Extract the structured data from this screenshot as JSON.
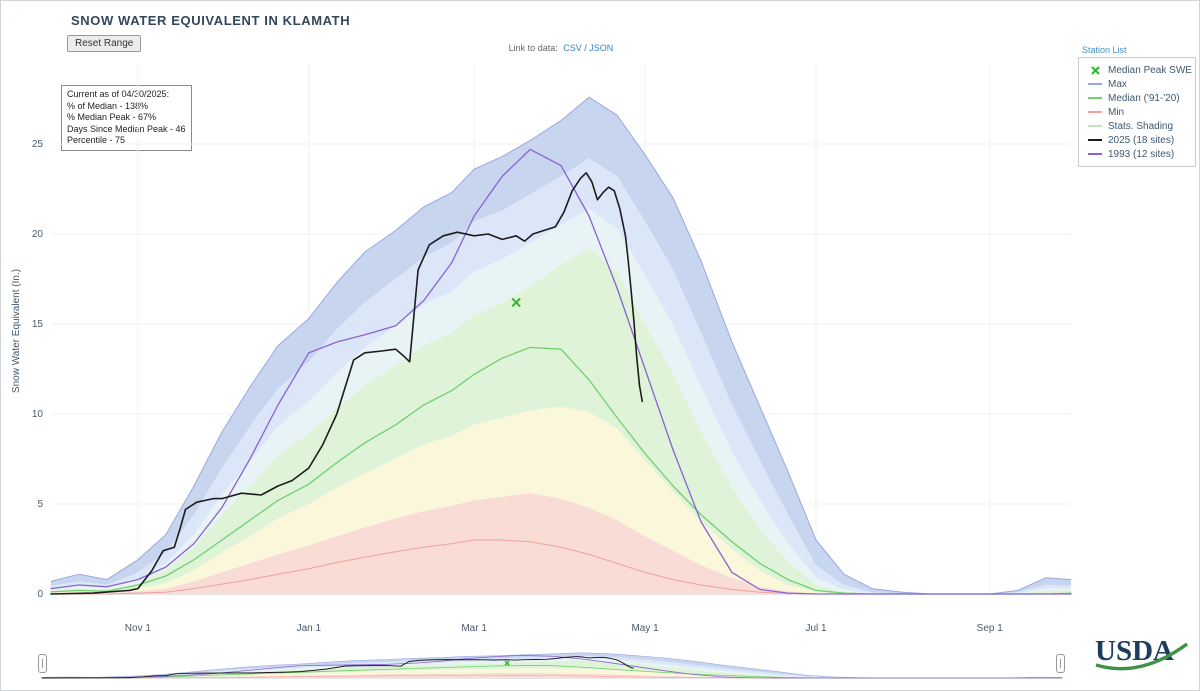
{
  "header": {
    "title": "SNOW WATER EQUIVALENT IN KLAMATH",
    "reset_button": "Reset Range",
    "link_prefix": "Link to data:",
    "csv_link": "CSV",
    "link_separator": "/",
    "json_link": "JSON",
    "station_list": "Station List"
  },
  "info_box": {
    "line1": "Current as of 04/30/2025:",
    "line2": "% of Median - 138%",
    "line3": "% Median Peak - 67%",
    "line4": "Days Since Median Peak - 46",
    "line5": "Percentile - 75"
  },
  "legend": {
    "items": [
      {
        "label": "Median Peak SWE",
        "marker": "x",
        "color": "#2db82d"
      },
      {
        "label": "Max",
        "marker": "line",
        "color": "#9aa8e0"
      },
      {
        "label": "Median ('91-'20)",
        "marker": "line",
        "color": "#72cf72"
      },
      {
        "label": "Min",
        "marker": "line",
        "color": "#f0a19c"
      },
      {
        "label": "Stats. Shading",
        "marker": "line",
        "color": "#bfe9b4"
      },
      {
        "label": "2025 (18 sites)",
        "marker": "line",
        "color": "#1c1c1c"
      },
      {
        "label": "1993 (12 sites)",
        "marker": "line",
        "color": "#8a63d2"
      }
    ]
  },
  "logo": {
    "text": "USDA"
  },
  "chart_data": {
    "type": "area",
    "title": "SNOW WATER EQUIVALENT IN KLAMATH",
    "ylabel": "Snow Water Equivalent (In.)",
    "xlabel": "",
    "ylim": [
      0,
      29.5
    ],
    "x_domain_days": [
      0,
      364
    ],
    "x_ticks": [
      {
        "day": 31,
        "label": "Nov 1"
      },
      {
        "day": 92,
        "label": "Jan 1"
      },
      {
        "day": 151,
        "label": "Mar 1"
      },
      {
        "day": 212,
        "label": "May 1"
      },
      {
        "day": 273,
        "label": "Jul 1"
      },
      {
        "day": 335,
        "label": "Sep 1"
      }
    ],
    "y_ticks": [
      0,
      5,
      10,
      15,
      20,
      25
    ],
    "band_days": [
      0,
      10,
      20,
      31,
      41,
      51,
      61,
      71,
      81,
      92,
      102,
      112,
      123,
      133,
      143,
      151,
      161,
      171,
      182,
      192,
      202,
      212,
      222,
      232,
      243,
      253,
      263,
      273,
      283,
      293,
      304,
      314,
      324,
      335,
      345,
      355,
      364
    ],
    "series": {
      "max": [
        0.7,
        1.1,
        0.8,
        1.9,
        3.3,
        6.0,
        9.0,
        11.5,
        13.8,
        15.3,
        17.3,
        19.0,
        20.2,
        21.5,
        22.3,
        23.6,
        24.3,
        25.2,
        26.3,
        27.6,
        26.6,
        24.4,
        22.0,
        18.5,
        14.0,
        10.4,
        6.8,
        3.0,
        1.1,
        0.3,
        0.1,
        0,
        0,
        0,
        0.2,
        0.9,
        0.8
      ],
      "p90": [
        0.45,
        0.7,
        0.5,
        1.2,
        2.3,
        4.4,
        7.0,
        9.3,
        11.4,
        12.9,
        14.7,
        16.2,
        17.5,
        18.7,
        19.5,
        20.7,
        21.3,
        22.2,
        23.2,
        24.2,
        23.2,
        20.7,
        18.0,
        14.5,
        10.5,
        7.4,
        4.4,
        1.6,
        0.5,
        0.1,
        0,
        0,
        0,
        0,
        0.1,
        0.5,
        0.45
      ],
      "p70": [
        0.3,
        0.45,
        0.35,
        0.8,
        1.7,
        3.3,
        5.5,
        7.4,
        9.3,
        10.7,
        12.3,
        13.7,
        14.9,
        16.1,
        16.8,
        17.9,
        18.6,
        19.5,
        20.5,
        21.4,
        20.3,
        17.7,
        14.9,
        11.5,
        7.9,
        5.2,
        2.8,
        0.9,
        0.25,
        0.05,
        0,
        0,
        0,
        0,
        0.05,
        0.3,
        0.3
      ],
      "green_top": [
        0.2,
        0.3,
        0.25,
        0.6,
        1.3,
        2.6,
        4.4,
        6.0,
        7.7,
        8.9,
        10.3,
        11.6,
        12.7,
        13.8,
        14.5,
        15.5,
        16.2,
        17.1,
        18.3,
        19.2,
        17.9,
        15.0,
        12.2,
        9.0,
        5.9,
        3.6,
        1.8,
        0.5,
        0.1,
        0,
        0,
        0,
        0,
        0,
        0,
        0.15,
        0.2
      ],
      "yellow_top": [
        0.1,
        0.15,
        0.1,
        0.3,
        0.6,
        1.3,
        2.3,
        3.2,
        4.2,
        5.0,
        5.9,
        6.7,
        7.5,
        8.3,
        8.8,
        9.4,
        9.8,
        10.2,
        10.4,
        10.1,
        9.2,
        7.4,
        5.7,
        4.0,
        2.5,
        1.3,
        0.5,
        0.1,
        0,
        0,
        0,
        0,
        0,
        0,
        0,
        0.05,
        0.1
      ],
      "red_top": [
        0.03,
        0.05,
        0.05,
        0.15,
        0.3,
        0.7,
        1.2,
        1.7,
        2.2,
        2.7,
        3.2,
        3.7,
        4.2,
        4.6,
        4.9,
        5.2,
        5.4,
        5.6,
        5.3,
        4.8,
        4.1,
        3.2,
        2.4,
        1.6,
        0.9,
        0.4,
        0.15,
        0.03,
        0,
        0,
        0,
        0,
        0,
        0,
        0,
        0,
        0.03
      ],
      "min": [
        0,
        0,
        0,
        0.05,
        0.1,
        0.3,
        0.55,
        0.8,
        1.1,
        1.4,
        1.75,
        2.05,
        2.35,
        2.6,
        2.8,
        3.0,
        3.0,
        2.9,
        2.6,
        2.2,
        1.7,
        1.2,
        0.8,
        0.5,
        0.25,
        0.1,
        0.03,
        0,
        0,
        0,
        0,
        0,
        0,
        0,
        0,
        0,
        0
      ],
      "median": [
        0.12,
        0.2,
        0.15,
        0.5,
        1.0,
        1.9,
        3.0,
        4.1,
        5.2,
        6.1,
        7.3,
        8.4,
        9.4,
        10.5,
        11.3,
        12.2,
        13.1,
        13.7,
        13.6,
        11.9,
        9.8,
        7.8,
        6.0,
        4.4,
        2.9,
        1.7,
        0.8,
        0.2,
        0.05,
        0,
        0,
        0,
        0,
        0,
        0,
        0,
        0.05
      ],
      "y1993": [
        0.3,
        0.5,
        0.4,
        0.8,
        1.5,
        2.8,
        4.8,
        7.5,
        10.5,
        13.4,
        14.0,
        14.4,
        14.9,
        16.3,
        18.4,
        21.0,
        23.2,
        24.7,
        23.8,
        21.0,
        17.0,
        12.5,
        8.0,
        4.0,
        1.2,
        0.25,
        0.05,
        0,
        0,
        0,
        0,
        0,
        0,
        0,
        0,
        0,
        0
      ]
    },
    "bands": [
      {
        "upper": "max",
        "lower": "p90",
        "color": "#c7d5ef"
      },
      {
        "upper": "p90",
        "lower": "p70",
        "color": "#dbe7f8"
      },
      {
        "upper": "p70",
        "lower": "green_top",
        "color": "#e7f3f4"
      },
      {
        "upper": "green_top",
        "lower": "yellow_top",
        "color": "#def3d7"
      },
      {
        "upper": "yellow_top",
        "lower": "red_top",
        "color": "#fbf7da"
      },
      {
        "upper": "red_top",
        "lower": "zero",
        "color": "#f9dcd6"
      }
    ],
    "lines": [
      {
        "name": "max",
        "series": "max",
        "color": "#9aa8e0",
        "width": 1
      },
      {
        "name": "min",
        "series": "min",
        "color": "#f0a19c",
        "width": 1
      },
      {
        "name": "median-91-20",
        "series": "median",
        "color": "#72cf72",
        "width": 1.3
      },
      {
        "name": "1993-12-sites",
        "series": "y1993",
        "color": "#8a63d2",
        "width": 1.3
      },
      {
        "name": "2025-18-sites",
        "color": "#1c1c1c",
        "width": 1.6,
        "days": [
          0,
          15,
          28,
          31,
          36,
          40,
          44,
          46,
          48,
          52,
          58,
          61,
          68,
          75,
          81,
          86,
          92,
          97,
          102,
          105,
          108,
          112,
          118,
          123,
          126,
          128,
          131,
          135,
          140,
          145,
          151,
          156,
          161,
          166,
          169,
          172,
          176,
          180,
          183,
          186,
          189,
          191,
          193,
          195,
          197,
          199,
          201,
          203,
          205,
          206,
          207,
          208,
          209,
          210,
          211
        ],
        "values": [
          0,
          0.05,
          0.2,
          0.3,
          1.3,
          2.4,
          2.6,
          3.6,
          4.7,
          5.1,
          5.3,
          5.3,
          5.6,
          5.5,
          6.0,
          6.3,
          7.0,
          8.3,
          10.0,
          11.5,
          13.0,
          13.4,
          13.5,
          13.6,
          13.2,
          12.9,
          18.0,
          19.4,
          19.9,
          20.1,
          19.9,
          20.0,
          19.7,
          19.9,
          19.6,
          20.0,
          20.2,
          20.4,
          21.2,
          22.4,
          23.1,
          23.4,
          22.9,
          21.9,
          22.3,
          22.6,
          22.4,
          21.4,
          19.9,
          18.5,
          16.9,
          15.2,
          13.2,
          11.6,
          10.7
        ]
      }
    ],
    "marker": {
      "name": "median-peak-swe",
      "day": 166,
      "value": 16.2,
      "color": "#2db82d"
    }
  }
}
